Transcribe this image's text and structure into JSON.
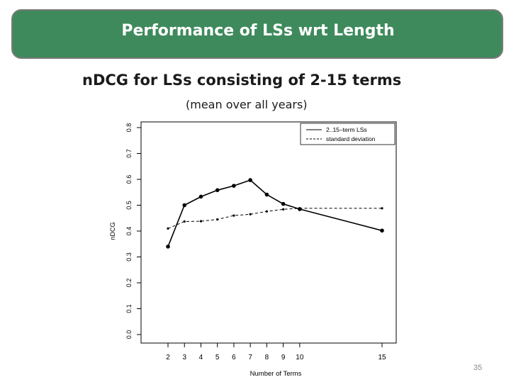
{
  "slide": {
    "title": "Performance of LSs wrt Length",
    "heading": "nDCG for LSs consisting of 2-15 terms",
    "subheading": "(mean over all years)",
    "page_number": "35"
  },
  "colors": {
    "title_bg": "#3e8a5c",
    "title_border": "#7a7a7a",
    "line": "#000000"
  },
  "chart_data": {
    "type": "line",
    "title": "",
    "xlabel": "Number of Terms",
    "ylabel": "nDCG",
    "xlim": [
      2,
      15
    ],
    "ylim": [
      0,
      0.8
    ],
    "x_ticks": [
      2,
      3,
      4,
      5,
      6,
      7,
      8,
      9,
      10,
      15
    ],
    "y_ticks": [
      "0.0",
      "0.1",
      "0.2",
      "0.3",
      "0.4",
      "0.5",
      "0.6",
      "0.7",
      "0.8"
    ],
    "legend_position": "top-right",
    "series": [
      {
        "name": "2..15–term LSs",
        "style": "solid",
        "x": [
          2,
          3,
          4,
          5,
          6,
          7,
          8,
          9,
          10,
          15
        ],
        "values": [
          0.34,
          0.5,
          0.533,
          0.558,
          0.575,
          0.597,
          0.541,
          0.505,
          0.485,
          0.402
        ]
      },
      {
        "name": "standard deviation",
        "style": "dashed",
        "x": [
          2,
          3,
          4,
          5,
          6,
          7,
          8,
          9,
          10,
          15
        ],
        "values": [
          0.41,
          0.437,
          0.438,
          0.445,
          0.46,
          0.465,
          0.476,
          0.484,
          0.488,
          0.488
        ]
      }
    ]
  }
}
